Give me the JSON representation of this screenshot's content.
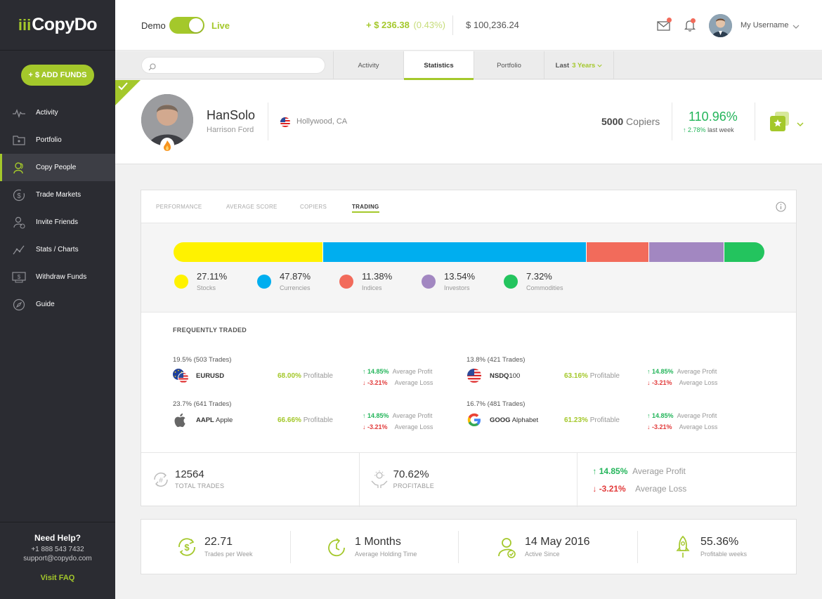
{
  "app": {
    "logo_mark": "iii",
    "logo_text": "CopyDo"
  },
  "sidebar": {
    "add_funds_label": "+ $ ADD FUNDS",
    "items": [
      {
        "label": "Activity",
        "icon": "pulse-icon"
      },
      {
        "label": "Portfolio",
        "icon": "folder-star-icon"
      },
      {
        "label": "Copy People",
        "icon": "people-icon",
        "active": true
      },
      {
        "label": "Trade Markets",
        "icon": "dollar-cycle-icon"
      },
      {
        "label": "Invite Friends",
        "icon": "add-user-icon"
      },
      {
        "label": "Stats / Charts",
        "icon": "line-chart-icon"
      },
      {
        "label": "Withdraw Funds",
        "icon": "withdraw-icon"
      },
      {
        "label": "Guide",
        "icon": "compass-icon"
      }
    ],
    "help": {
      "title": "Need Help?",
      "phone": "+1 888 543 7432",
      "email": "support@copydo.com",
      "faq_label": "Visit FAQ"
    }
  },
  "topbar": {
    "demo_label": "Demo",
    "live_label": "Live",
    "mode": "live",
    "pl_value": "+ $ 236.38",
    "pl_pct": "(0.43%)",
    "balance": "$ 100,236.24",
    "username": "My Username"
  },
  "subbar": {
    "search_placeholder": "",
    "tabs": [
      {
        "label": "Activity"
      },
      {
        "label": "Statistics",
        "active": true
      },
      {
        "label": "Portfolio"
      }
    ],
    "period_label": "Last",
    "period_value": "3 Years"
  },
  "profile": {
    "name": "HanSolo",
    "real_name": "Harrison Ford",
    "location": "Hollywood, CA",
    "copiers_count": "5000",
    "copiers_label": "Copiers",
    "return_pct": "110.96%",
    "weekly_change": "2.78%",
    "weekly_label": "last week"
  },
  "stats": {
    "tabs": [
      {
        "label": "PERFORMANCE"
      },
      {
        "label": "AVERAGE SCORE"
      },
      {
        "label": "COPIERS"
      },
      {
        "label": "TRADING",
        "active": true
      }
    ],
    "distribution": [
      {
        "pct": "27.11%",
        "label": "Stocks",
        "value": 27.11,
        "color": "#fff200"
      },
      {
        "pct": "47.87%",
        "label": "Currencies",
        "value": 47.87,
        "color": "#00aeef"
      },
      {
        "pct": "11.38%",
        "label": "Indices",
        "value": 11.38,
        "color": "#f26b5b"
      },
      {
        "pct": "13.54%",
        "label": "Investors",
        "value": 13.54,
        "color": "#a287c1"
      },
      {
        "pct": "7.32%",
        "label": "Commodities",
        "value": 7.32,
        "color": "#23c45e"
      }
    ],
    "frequently_traded_title": "FREQUENTLY TRADED",
    "trades": [
      {
        "head": "19.5% (503 Trades)",
        "symbol": "EURUSD",
        "name": "",
        "profitable_pct": "68.00%",
        "profitable_label": "Profitable",
        "avg_profit": "14.85%",
        "avg_profit_label": "Average Profit",
        "avg_loss": "-3.21%",
        "avg_loss_label": "Average Loss",
        "icon": "eu-us-flag-icon"
      },
      {
        "head": "13.8% (421 Trades)",
        "symbol": "NSDQ",
        "name": "100",
        "profitable_pct": "63.16%",
        "profitable_label": "Profitable",
        "avg_profit": "14.85%",
        "avg_profit_label": "Average Profit",
        "avg_loss": "-3.21%",
        "avg_loss_label": "Average Loss",
        "icon": "us-flag-icon"
      },
      {
        "head": "23.7% (641 Trades)",
        "symbol": "AAPL",
        "name": "Apple",
        "profitable_pct": "66.66%",
        "profitable_label": "Profitable",
        "avg_profit": "14.85%",
        "avg_profit_label": "Average Profit",
        "avg_loss": "-3.21%",
        "avg_loss_label": "Average Loss",
        "icon": "apple-logo-icon"
      },
      {
        "head": "16.7% (481 Trades)",
        "symbol": "GOOG",
        "name": "Alphabet",
        "profitable_pct": "61.23%",
        "profitable_label": "Profitable",
        "avg_profit": "14.85%",
        "avg_profit_label": "Average Profit",
        "avg_loss": "-3.21%",
        "avg_loss_label": "Average Loss",
        "icon": "google-logo-icon"
      }
    ],
    "summary": {
      "total_trades": "12564",
      "total_trades_label": "TOTAL TRADES",
      "profitable": "70.62%",
      "profitable_label": "PROFITABLE",
      "avg_profit": "14.85%",
      "avg_profit_label": "Average Profit",
      "avg_loss": "-3.21%",
      "avg_loss_label": "Average Loss"
    }
  },
  "kpis": [
    {
      "value": "22.71",
      "label": "Trades per Week",
      "icon": "dollar-cycle-icon"
    },
    {
      "value": "1 Months",
      "label": "Average Holding Time",
      "icon": "clock-refresh-icon"
    },
    {
      "value": "14 May 2016",
      "label": "Active Since",
      "icon": "user-check-icon"
    },
    {
      "value": "55.36%",
      "label": "Profitable weeks",
      "icon": "rocket-icon"
    }
  ],
  "colors": {
    "accent": "#a4c82b",
    "positive": "#23b55a",
    "negative": "#e23b3b",
    "sidebar_bg": "#2b2c32"
  }
}
